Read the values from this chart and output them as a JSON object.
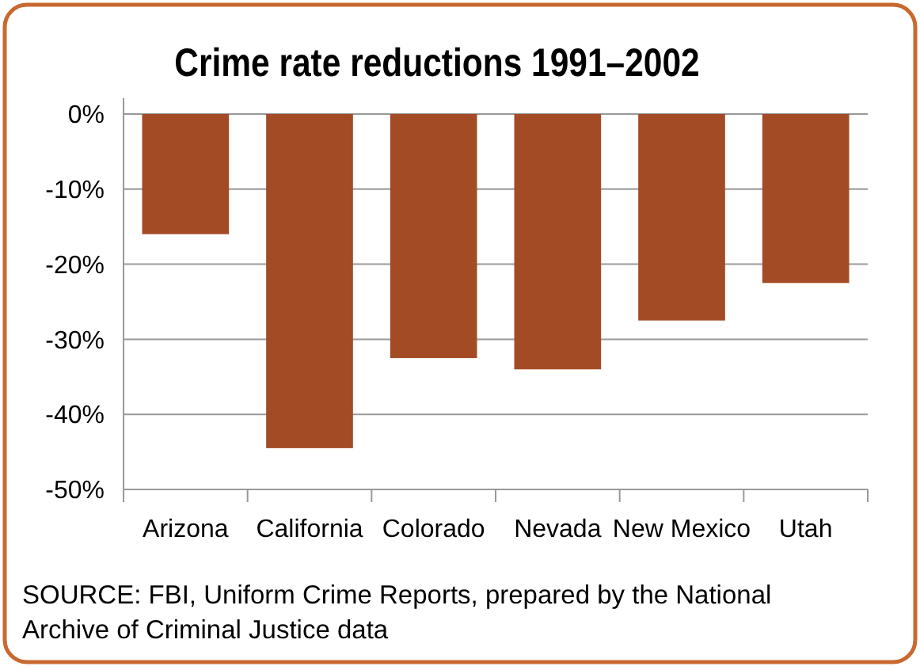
{
  "chart_data": {
    "type": "bar",
    "title": "Crime rate reductions 1991–2002",
    "categories": [
      "Arizona",
      "California",
      "Colorado",
      "Nevada",
      "New Mexico",
      "Utah"
    ],
    "values": [
      -16,
      -44.5,
      -32.5,
      -34,
      -27.5,
      -22.5
    ],
    "color": "#a34b25",
    "ylim": [
      -50,
      0
    ],
    "yticks": [
      {
        "value": 0,
        "label": "0%"
      },
      {
        "value": -10,
        "label": "-10%"
      },
      {
        "value": -20,
        "label": "-20%"
      },
      {
        "value": -30,
        "label": "-30%"
      },
      {
        "value": -40,
        "label": "-40%"
      },
      {
        "value": -50,
        "label": "-50%"
      }
    ],
    "grid": "y",
    "annotations": [
      "SOURCE: FBI, Uniform Crime Reports, prepared by the National Archive of Criminal Justice data"
    ]
  }
}
